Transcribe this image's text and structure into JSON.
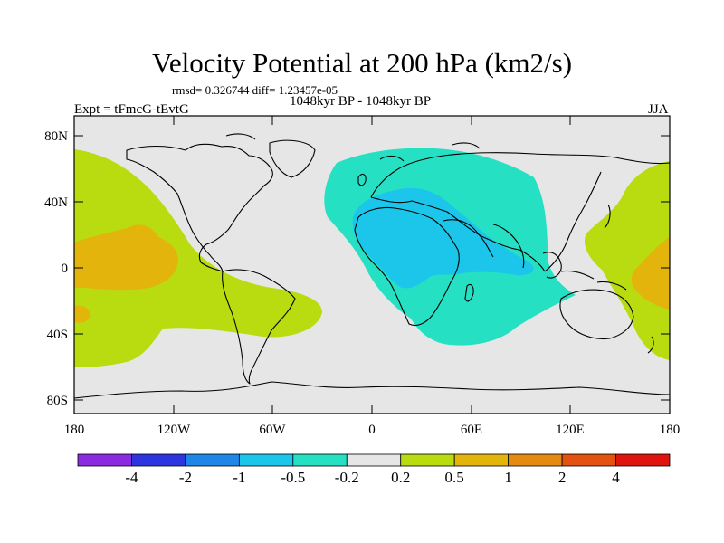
{
  "title": "Velocity Potential at 200 hPa (km2/s)",
  "stats": "rmsd= 0.326744 diff= 1.23457e-05",
  "period": "1048kyr BP - 1048kyr BP",
  "experiment": "Expt = tFmcG-tEvtG",
  "season": "JJA",
  "lat_ticks": [
    "80N",
    "40N",
    "0",
    "40S",
    "80S"
  ],
  "lon_ticks": [
    "180",
    "120W",
    "60W",
    "0",
    "60E",
    "120E",
    "180"
  ],
  "colorbar": {
    "colors": [
      "#8a2be2",
      "#2d35e0",
      "#1d86e6",
      "#1bc6ea",
      "#26e0c3",
      "#e6e6e6",
      "#b8dc10",
      "#e3b40b",
      "#e58a10",
      "#e3520f",
      "#e0140f"
    ],
    "labels": [
      "-4",
      "-2",
      "-1",
      "-0.5",
      "-0.2",
      "0.2",
      "0.5",
      "1",
      "2",
      "4"
    ]
  },
  "palette": {
    "ocean_bg": "#e6e6e6",
    "pos_light": "#b8dc10",
    "pos_mid": "#e3b40b",
    "neg_light": "#26e0c3",
    "neg_mid": "#1bc6ea"
  }
}
